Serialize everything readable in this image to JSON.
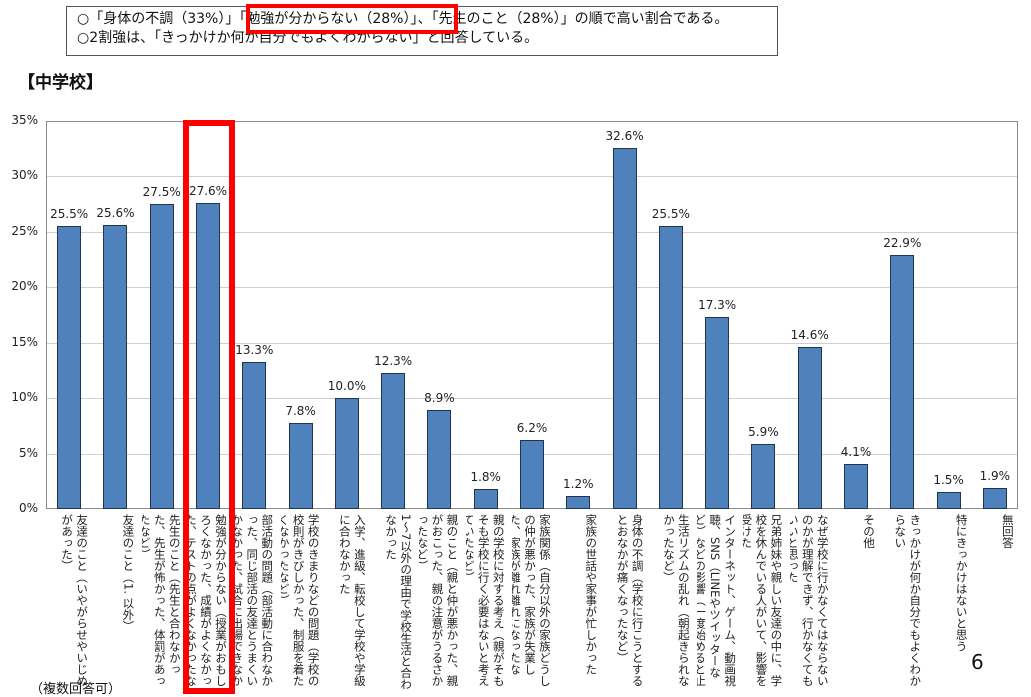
{
  "summary": {
    "lines": [
      "○「身体の不調（33%）」「勉強が分からない（28%）」、「先生のこと（28%）」の順で高い割合である。",
      "○2割強は、「きっかけか何か自分でもよくわからない」と回答している。"
    ],
    "highlighted_phrase": "「勉強が分からない（28%）」"
  },
  "section_title": "【中学校】",
  "footnote": "（複数回答可）",
  "page_number": "6",
  "colors": {
    "bar": "#4f81bd",
    "highlight": "#ff0000",
    "grid": "#cfcfcf"
  },
  "chart_data": {
    "type": "bar",
    "title": "【中学校】",
    "xlabel": "",
    "ylabel": "",
    "ylim": [
      0,
      35
    ],
    "yticks": [
      "0%",
      "5%",
      "10%",
      "15%",
      "20%",
      "25%",
      "30%",
      "35%"
    ],
    "grid": true,
    "legend": null,
    "highlighted_category_index": 3,
    "categories": [
      "友達のこと（いやがらせやいじめがあった）",
      "友達のこと（1. 以外）",
      "先生のこと（先生と合わなかった、先生が怖かった、体罰があったなど）",
      "勉強が分からない（授業がおもしろくなかった、成績がよくなかった、テストの点がよくなかったなど）",
      "部活動の問題（部活動に合わなかった、同じ部活の友達とうまくいかなかった、試合に出場できなかった、部活動に行きたくなかったなど）",
      "学校のきまりなどの問題（学校の校則がきびしかった、制服を着たくなかったなど）",
      "入学、進級、転校して学校や学級に合わなかった",
      "1～7以外の理由で学校生活と合わなかった",
      "親のこと（親と仲が悪かった、親がおこった、親の注意がうるさかったなど）",
      "親の学校に対する考え（親がそもそも学校に行く必要はないと考えていたなど）",
      "家族関係（自分以外の家族どうしの仲が悪かった、家族が失業した、家族が離れ離れになったなど）",
      "家族の世話や家事が忙しかった",
      "身体の不調（学校に行こうとするとおなかが痛くなったなど）",
      "生活リズムの乱れ（朝起きられなかったなど）",
      "インターネット、ゲーム、動画視聴、SNS（LINEやツイッターなど）などの影響（一度始めると止められなかった、学校に行くより楽しかったなど）",
      "兄弟姉妹や親しい友達の中に、学校を休んでいる人がいて、影響を受けた",
      "なぜ学校に行かなくてはならないのかが理解できず、行かなくてもいいと思った",
      "その他",
      "きっかけが何か自分でもよくわからない",
      "特にきっかけはないと思う",
      "無回答"
    ],
    "values": [
      25.5,
      25.6,
      27.5,
      27.6,
      13.3,
      7.8,
      10.0,
      12.3,
      8.9,
      1.8,
      6.2,
      1.2,
      32.6,
      25.5,
      17.3,
      5.9,
      14.6,
      4.1,
      22.9,
      1.5,
      1.9
    ],
    "value_labels": [
      "25.5%",
      "25.6%",
      "27.5%",
      "27.6%",
      "13.3%",
      "7.8%",
      "10.0%",
      "12.3%",
      "8.9%",
      "1.8%",
      "6.2%",
      "1.2%",
      "32.6%",
      "25.5%",
      "17.3%",
      "5.9%",
      "14.6%",
      "4.1%",
      "22.9%",
      "1.5%",
      "1.9%"
    ]
  }
}
